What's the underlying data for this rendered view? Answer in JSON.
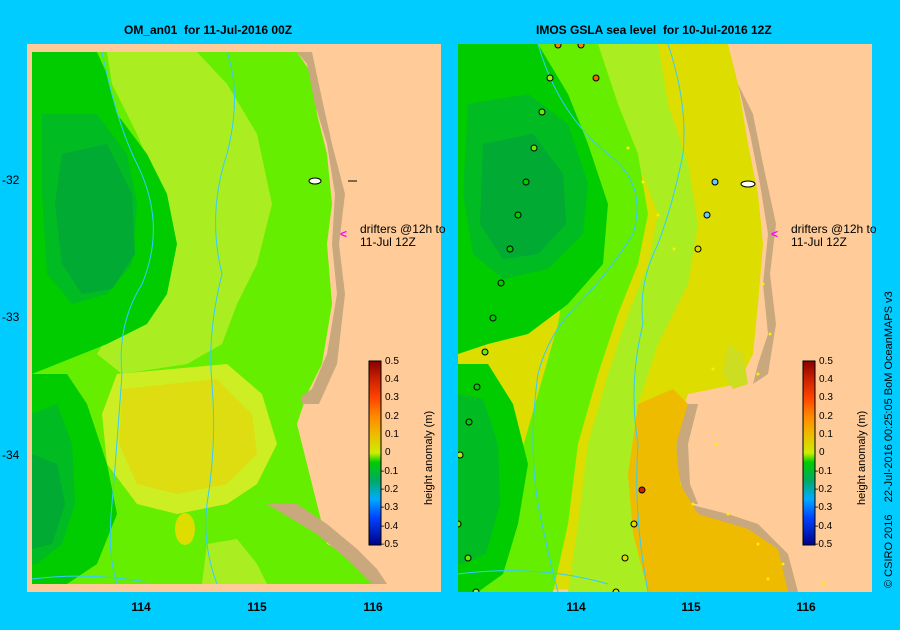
{
  "left_title": "OM_an01  for 11-Jul-2016 00Z",
  "right_title": "IMOS GSLA sea level  for 10-Jul-2016 12Z",
  "y_ticks": [
    "-32",
    "-33",
    "-34"
  ],
  "x_ticks": [
    "114",
    "115",
    "116"
  ],
  "drifter_label_line1": "drifters @12h to",
  "drifter_label_line2": "11-Jul 12Z",
  "colorbar": {
    "label": "height anomaly (m)",
    "ticks": [
      "0.5",
      "0.4",
      "0.3",
      "0.2",
      "0.1",
      "0",
      "-0.1",
      "-0.2",
      "-0.3",
      "-0.4",
      "-0.5"
    ],
    "colors": [
      "#ff8800",
      "#ff4400",
      "#cc2200",
      "#880000"
    ]
  },
  "credit": "© CSIRO 2016    22-Jul-2016 00:25:05 BoM OceanMAPS v3",
  "colors": {
    "background": "#00ccff",
    "land": "#ffcc99",
    "coast": "#c8a87c",
    "dark_green": "#00aa33",
    "green": "#00cc00",
    "light_green": "#66ee00",
    "yellow_green": "#aaee22",
    "yellow": "#dddd00",
    "gold": "#eebb00"
  }
}
